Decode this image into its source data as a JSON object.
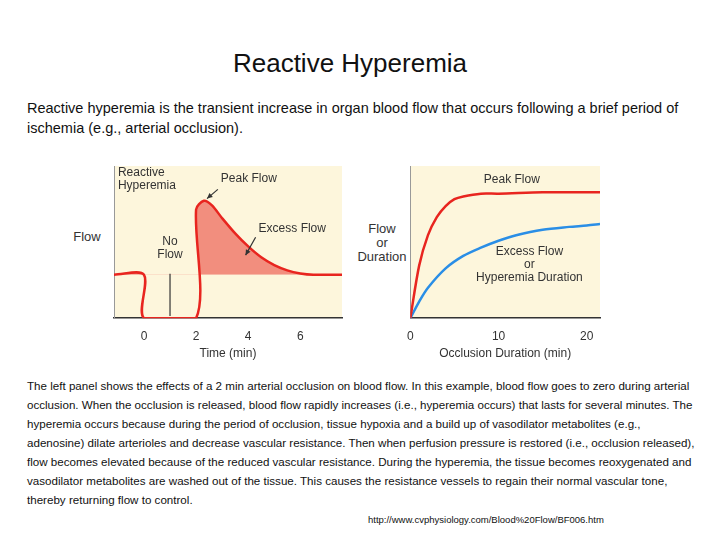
{
  "title": "Reactive Hyperemia",
  "intro": "Reactive hyperemia is the transient increase in organ blood flow that occurs following a brief period of ischemia (e.g., arterial occlusion).",
  "caption": "The left panel shows the effects of a 2 min arterial occlusion on blood flow. In this example, blood flow goes to zero during arterial occlusion. When the occlusion is released, blood flow rapidly increases (i.e., hyperemia occurs) that lasts for several minutes. The hyperemia occurs because during the period of occlusion, tissue hypoxia and a build up of vasodilator metabolites (e.g., adenosine) dilate arterioles and decrease vascular resistance. Then when perfusion pressure is restored (i.e., occlusion released), flow becomes elevated because of the reduced vascular resistance. During the hyperemia, the tissue becomes reoxygenated and vasodilator metabolites are washed out of the tissue. This causes the resistance vessels to regain their normal vascular tone, thereby returning flow to control.",
  "source": "http://www.cvphysiology.com/Blood%20Flow/BF006.htm",
  "chart_data": [
    {
      "type": "line",
      "x_label": "Time (min)",
      "y_label": [
        "Flow"
      ],
      "xlim": [
        -1.15,
        7.6
      ],
      "xticks": [
        0,
        2,
        4,
        6
      ],
      "ylim": [
        0,
        3.5
      ],
      "grid": false,
      "tick_labels": "x",
      "series": [
        {
          "color": "#e8251f",
          "baseline": 1,
          "x": [
            -1.15,
            0,
            0,
            2,
            2,
            2.3,
            2.6,
            3,
            3.5,
            4,
            4.5,
            5,
            5.5,
            6,
            6.5,
            7.6
          ],
          "values": [
            1,
            1,
            0,
            0,
            2.5,
            2.7,
            2.6,
            2.3,
            1.95,
            1.65,
            1.4,
            1.22,
            1.1,
            1.03,
            1,
            1
          ]
        }
      ],
      "annotations": [
        {
          "text": [
            "Reactive",
            "Hyperemia"
          ]
        },
        {
          "text": [
            "Peak Flow"
          ]
        },
        {
          "text": [
            "Excess Flow"
          ]
        },
        {
          "text": [
            "No",
            "Flow"
          ]
        }
      ]
    },
    {
      "type": "line",
      "x_label": "Occlusion Duration (min)",
      "y_label": [
        "Flow",
        "or",
        "Duration"
      ],
      "xlim": [
        0,
        21.5
      ],
      "xticks": [
        0,
        10,
        20
      ],
      "ylim": [
        0,
        110
      ],
      "grid": false,
      "tick_labels": "x",
      "series": [
        {
          "color": "#e8251f",
          "x": [
            0,
            1,
            2,
            3,
            4,
            5,
            6,
            8,
            10,
            15,
            20,
            21.5
          ],
          "values": [
            0,
            38,
            60,
            73,
            81,
            86,
            88,
            90,
            90,
            91,
            91,
            91
          ]
        },
        {
          "color": "#2a8ee6",
          "x": [
            0,
            1,
            2,
            4,
            6,
            8,
            10,
            12,
            15,
            18,
            20,
            21.5
          ],
          "values": [
            0,
            12,
            22,
            36,
            45,
            51,
            56,
            60,
            64,
            66,
            67,
            68
          ]
        }
      ],
      "annotations": [
        {
          "text": [
            "Peak Flow"
          ]
        },
        {
          "text": [
            "Excess Flow",
            "or",
            "Hyperemia Duration"
          ]
        }
      ]
    }
  ]
}
